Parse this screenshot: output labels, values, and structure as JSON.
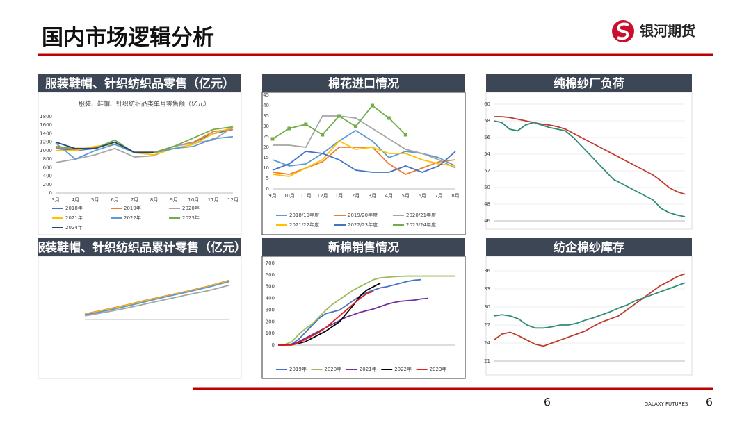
{
  "header": {
    "title": "国内市场逻辑分析",
    "logo": "银河期货"
  },
  "footer": {
    "page": "6",
    "brand": "GALAXY FUTURES",
    "page_right": "6"
  },
  "chart_data": [
    {
      "type": "line",
      "title": "服装鞋帽、针织纺织品零售（亿元）",
      "subtitle": "服装、鞋帽、针织纺织品类单月零售额（亿元）",
      "categories": [
        "3月",
        "4月",
        "5月",
        "6月",
        "7月",
        "8月",
        "9月",
        "10月",
        "11月",
        "12月"
      ],
      "ylim": [
        0,
        1800
      ],
      "yticks": [
        0,
        200,
        400,
        600,
        800,
        1000,
        1200,
        1400,
        1600,
        1800
      ],
      "series": [
        {
          "name": "2018年",
          "color": "#4472c4",
          "values": [
            1050,
            1000,
            1050,
            1200,
            950,
            950,
            1100,
            1200,
            1400,
            1500
          ]
        },
        {
          "name": "2019年",
          "color": "#ed7d31",
          "values": [
            1080,
            1020,
            1080,
            1200,
            960,
            960,
            1100,
            1200,
            1450,
            1500
          ]
        },
        {
          "name": "2020年",
          "color": "#a5a5a5",
          "values": [
            720,
            800,
            900,
            1050,
            850,
            880,
            1100,
            1180,
            1250,
            1550
          ]
        },
        {
          "name": "2021年",
          "color": "#ffc000",
          "values": [
            1000,
            1000,
            1100,
            1150,
            950,
            900,
            1050,
            1150,
            1400,
            1550
          ]
        },
        {
          "name": "2022年",
          "color": "#5b9bd5",
          "values": [
            1180,
            800,
            1000,
            1150,
            950,
            950,
            1050,
            1100,
            1280,
            1330
          ]
        },
        {
          "name": "2023年",
          "color": "#70ad47",
          "values": [
            1100,
            1050,
            1050,
            1250,
            950,
            950,
            1100,
            1300,
            1500,
            1560
          ]
        },
        {
          "name": "2024年",
          "color": "#264478",
          "values": [
            1200,
            1050,
            1050,
            1200,
            960,
            960,
            null,
            null,
            null,
            null
          ]
        }
      ]
    },
    {
      "type": "line",
      "title": "棉花进口情况",
      "categories": [
        "9月",
        "10月",
        "11月",
        "12月",
        "1月",
        "2月",
        "3月",
        "4月",
        "5月",
        "6月",
        "7月",
        "8月"
      ],
      "ylim": [
        0,
        45
      ],
      "yticks": [
        0,
        5,
        10,
        15,
        20,
        25,
        30,
        35,
        40,
        45
      ],
      "series": [
        {
          "name": "2018/19年度",
          "color": "#5b9bd5",
          "values": [
            14,
            11,
            12,
            17,
            23,
            28,
            23,
            15,
            18,
            17,
            15,
            11
          ]
        },
        {
          "name": "2019/20年度",
          "color": "#ed7d31",
          "values": [
            8,
            7,
            10,
            13,
            20,
            20,
            20,
            12,
            7,
            10,
            13,
            14
          ]
        },
        {
          "name": "2020/21年度",
          "color": "#a5a5a5",
          "values": [
            21,
            21,
            20,
            35,
            35,
            34,
            29,
            24,
            19,
            17,
            14,
            10
          ]
        },
        {
          "name": "2021/22年度",
          "color": "#ffc000",
          "values": [
            7,
            6,
            10,
            14,
            23,
            19,
            20,
            17,
            17,
            14,
            12,
            11
          ]
        },
        {
          "name": "2022/23年度",
          "color": "#4472c4",
          "values": [
            9,
            12,
            18,
            17,
            14,
            9,
            8,
            8,
            11,
            8,
            11,
            18
          ]
        },
        {
          "name": "2023/24年度",
          "color": "#70ad47",
          "markers": true,
          "values": [
            24,
            29,
            31,
            26,
            35,
            30,
            40,
            34,
            26,
            null,
            null,
            null
          ]
        }
      ]
    },
    {
      "type": "line",
      "title": "纯棉纱厂负荷",
      "grid": true,
      "ylim": [
        46,
        60
      ],
      "yticks": [
        46,
        48,
        50,
        52,
        54,
        56,
        58,
        60
      ],
      "series": [
        {
          "color": "#c0392b",
          "values": [
            58.5,
            58.5,
            58.4,
            58.2,
            58,
            57.8,
            57.6,
            57.5,
            57.3,
            57,
            56.5,
            56,
            55.5,
            55,
            54.5,
            54,
            53.5,
            53,
            52.5,
            52,
            51.5,
            50.8,
            50,
            49.5,
            49.2
          ]
        },
        {
          "color": "#2e8b7a",
          "values": [
            58,
            57.8,
            57,
            56.8,
            57.5,
            57.8,
            57.5,
            57.2,
            57,
            56.8,
            56,
            55,
            54,
            53,
            52,
            51,
            50.5,
            50,
            49.5,
            49,
            48.5,
            47.5,
            47,
            46.7,
            46.5
          ]
        }
      ]
    },
    {
      "type": "line",
      "title": "服装鞋帽、针织纺织品累计零售（亿元）",
      "ylim": [
        0,
        100
      ],
      "series": [
        {
          "color": "#4472c4",
          "values": [
            10,
            20,
            30,
            42,
            52,
            62,
            72,
            85
          ]
        },
        {
          "color": "#ed7d31",
          "values": [
            12,
            22,
            32,
            43,
            53,
            63,
            74,
            87
          ]
        },
        {
          "color": "#a5a5a5",
          "values": [
            8,
            16,
            25,
            35,
            45,
            55,
            64,
            76
          ]
        },
        {
          "color": "#ffc000",
          "values": [
            11,
            21,
            31,
            42,
            52,
            62,
            73,
            86
          ]
        },
        {
          "color": "#5b9bd5",
          "values": [
            10,
            19,
            29,
            40,
            51,
            61,
            72,
            84
          ]
        }
      ]
    },
    {
      "type": "line",
      "title": "新棉销售情况",
      "categories": [
        null,
        null,
        null,
        null,
        null,
        null,
        null,
        null,
        null,
        null,
        null,
        null,
        null,
        null,
        null,
        null,
        null,
        null,
        null,
        null,
        null,
        null,
        null,
        null,
        null,
        null,
        null
      ],
      "ylim": [
        0,
        700
      ],
      "yticks": [
        0,
        100,
        200,
        300,
        400,
        500,
        600,
        700
      ],
      "series": [
        {
          "name": "2019年",
          "color": "#4472c4",
          "values": [
            0,
            0,
            10,
            50,
            110,
            170,
            230,
            270,
            285,
            300,
            340,
            380,
            420,
            450,
            470,
            490,
            500,
            515,
            530,
            545,
            555,
            560,
            null,
            null,
            null,
            null,
            null
          ]
        },
        {
          "name": "2020年",
          "color": "#9bbb59",
          "values": [
            0,
            5,
            30,
            90,
            140,
            180,
            240,
            300,
            350,
            390,
            430,
            470,
            500,
            530,
            560,
            575,
            580,
            585,
            588,
            590,
            590,
            590,
            590,
            590,
            590,
            590,
            590
          ]
        },
        {
          "name": "2021年",
          "color": "#7030a0",
          "values": [
            0,
            0,
            5,
            30,
            60,
            90,
            120,
            150,
            180,
            210,
            240,
            260,
            280,
            295,
            310,
            330,
            350,
            365,
            375,
            380,
            385,
            395,
            400,
            null,
            null,
            null,
            null
          ]
        },
        {
          "name": "2022年",
          "color": "#000000",
          "values": [
            0,
            0,
            5,
            15,
            30,
            60,
            90,
            120,
            160,
            200,
            270,
            340,
            420,
            470,
            500,
            530,
            null,
            null,
            null,
            null,
            null,
            null,
            null,
            null,
            null,
            null,
            null
          ]
        },
        {
          "name": "2023年",
          "color": "#e02020",
          "values": [
            0,
            0,
            0,
            20,
            50,
            80,
            110,
            150,
            200,
            250,
            300,
            350,
            400,
            440,
            460,
            null,
            null,
            null,
            null,
            null,
            null,
            null,
            null,
            null,
            null,
            null,
            null
          ]
        }
      ]
    },
    {
      "type": "line",
      "title": "纺企棉纱库存",
      "grid": true,
      "ylim": [
        21,
        36
      ],
      "yticks": [
        21,
        24,
        27,
        30,
        33,
        36
      ],
      "series": [
        {
          "color": "#c0392b",
          "values": [
            24.5,
            25.5,
            25.8,
            25.2,
            24.5,
            23.8,
            23.5,
            24,
            24.5,
            25,
            25.5,
            26,
            26.8,
            27.5,
            28,
            28.5,
            29.5,
            30.5,
            31.5,
            32.5,
            33.5,
            34.2,
            35,
            35.5
          ]
        },
        {
          "color": "#2e8b7a",
          "values": [
            28.5,
            28.7,
            28.5,
            28,
            27,
            26.5,
            26.5,
            26.7,
            27,
            27,
            27.3,
            27.8,
            28.2,
            28.7,
            29.2,
            29.8,
            30.3,
            31,
            31.5,
            32,
            32.5,
            33,
            33.5,
            34
          ]
        }
      ]
    }
  ]
}
